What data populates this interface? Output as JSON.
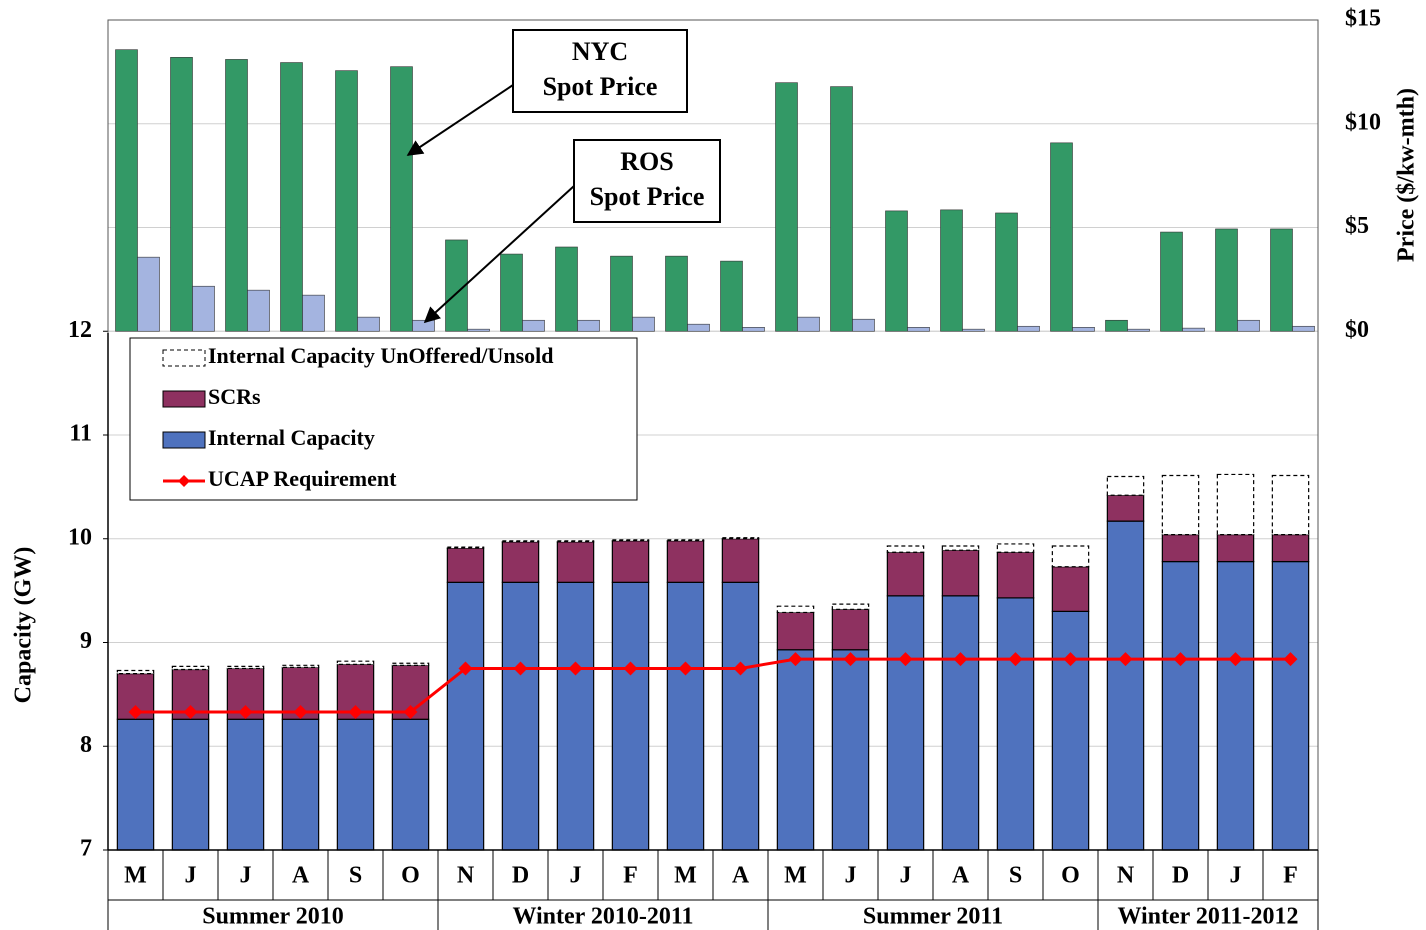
{
  "chart_data": {
    "type": "bar",
    "categories": [
      "M",
      "J",
      "J",
      "A",
      "S",
      "O",
      "N",
      "D",
      "J",
      "F",
      "M",
      "A",
      "M",
      "J",
      "J",
      "A",
      "S",
      "O",
      "N",
      "D",
      "J",
      "F"
    ],
    "groups": [
      {
        "label": "Summer 2010",
        "span": 6
      },
      {
        "label": "Winter 2010-2011",
        "span": 6
      },
      {
        "label": "Summer 2011",
        "span": 6
      },
      {
        "label": "Winter 2011-2012",
        "span": 4
      }
    ],
    "ylabel": "Capacity (GW)",
    "y2label": "Price ($/kw-mth)",
    "ylim": [
      7,
      15
    ],
    "yticks": [
      7,
      8,
      9,
      10,
      11,
      12
    ],
    "y2lim": [
      -25,
      15
    ],
    "y2ticks": [
      {
        "value": 0,
        "label": "$0"
      },
      {
        "value": 5,
        "label": "$5"
      },
      {
        "value": 10,
        "label": "$10"
      },
      {
        "value": 15,
        "label": "$15"
      }
    ],
    "grid": true,
    "legend": "upper left",
    "series": [
      {
        "name": "Internal Capacity",
        "type": "bar",
        "stack": true,
        "color": "#4f72be",
        "values": [
          8.26,
          8.26,
          8.26,
          8.26,
          8.26,
          8.26,
          9.58,
          9.58,
          9.58,
          9.58,
          9.58,
          9.58,
          8.93,
          8.93,
          9.45,
          9.45,
          9.43,
          9.3,
          10.17,
          9.78,
          9.78,
          9.78
        ]
      },
      {
        "name": "SCRs",
        "type": "bar",
        "stack": true,
        "color": "#8e3160",
        "values": [
          0.44,
          0.48,
          0.49,
          0.5,
          0.53,
          0.52,
          0.33,
          0.39,
          0.39,
          0.4,
          0.4,
          0.42,
          0.36,
          0.39,
          0.42,
          0.44,
          0.44,
          0.43,
          0.25,
          0.26,
          0.26,
          0.26
        ]
      },
      {
        "name": "Internal Capacity UnOffered/Unsold",
        "type": "bar",
        "stack": true,
        "dashed": true,
        "color": "#ffffff",
        "values": [
          0.03,
          0.03,
          0.02,
          0.02,
          0.03,
          0.02,
          0.01,
          0.01,
          0.01,
          0.01,
          0.01,
          0.01,
          0.06,
          0.05,
          0.06,
          0.04,
          0.08,
          0.2,
          0.18,
          0.57,
          0.58,
          0.57
        ]
      },
      {
        "name": "UCAP Requirement",
        "type": "line",
        "color": "#ff0000",
        "values": [
          8.33,
          8.33,
          8.33,
          8.33,
          8.33,
          8.33,
          8.75,
          8.75,
          8.75,
          8.75,
          8.75,
          8.75,
          8.84,
          8.84,
          8.84,
          8.84,
          8.84,
          8.84,
          8.84,
          8.84,
          8.84,
          8.84
        ]
      },
      {
        "type": "bar",
        "axis": "y2",
        "color": "#339966",
        "values": [
          13.57,
          13.2,
          13.1,
          12.95,
          12.56,
          12.75,
          4.4,
          3.72,
          4.06,
          3.62,
          3.62,
          3.38,
          11.98,
          11.79,
          5.8,
          5.85,
          5.7,
          9.08,
          0.53,
          4.78,
          4.93,
          4.93
        ]
      },
      {
        "type": "bar",
        "axis": "y2",
        "color": "#a4b4e0",
        "values": [
          3.57,
          2.17,
          1.98,
          1.74,
          0.68,
          0.53,
          0.1,
          0.53,
          0.53,
          0.68,
          0.34,
          0.19,
          0.68,
          0.58,
          0.19,
          0.1,
          0.24,
          0.19,
          0.1,
          0.15,
          0.53,
          0.24
        ]
      }
    ],
    "legend_order": [
      2,
      1,
      0,
      3
    ],
    "annotations": [
      {
        "lines": [
          "NYC",
          "Spot Price"
        ],
        "series": 4
      },
      {
        "lines": [
          "ROS",
          "Spot Price"
        ],
        "series": 5
      }
    ]
  }
}
